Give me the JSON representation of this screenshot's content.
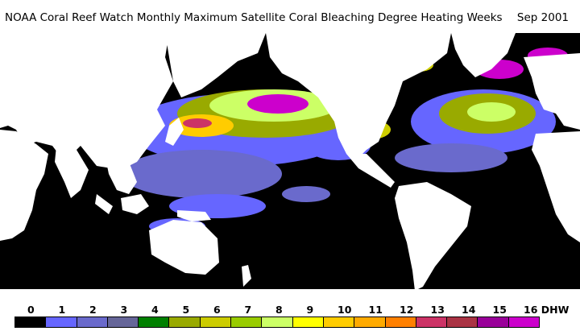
{
  "header": {
    "title": "NOAA Coral Reef Watch Monthly Maximum Satellite Coral Bleaching Degree Heating Weeks",
    "date": "Sep 2001"
  },
  "legend": {
    "labels": [
      "0",
      "1",
      "2",
      "3",
      "4",
      "5",
      "6",
      "7",
      "8",
      "9",
      "10",
      "11",
      "12",
      "13",
      "14",
      "15",
      "16 DHW"
    ],
    "colors": [
      "#000000",
      "#6666ff",
      "#6a6acc",
      "#666699",
      "#008000",
      "#99aa00",
      "#cccc00",
      "#99cc00",
      "#ccff66",
      "#ffff00",
      "#ffcc00",
      "#ffaa00",
      "#ff8000",
      "#cc3366",
      "#aa3344",
      "#990099",
      "#cc00cc"
    ]
  }
}
